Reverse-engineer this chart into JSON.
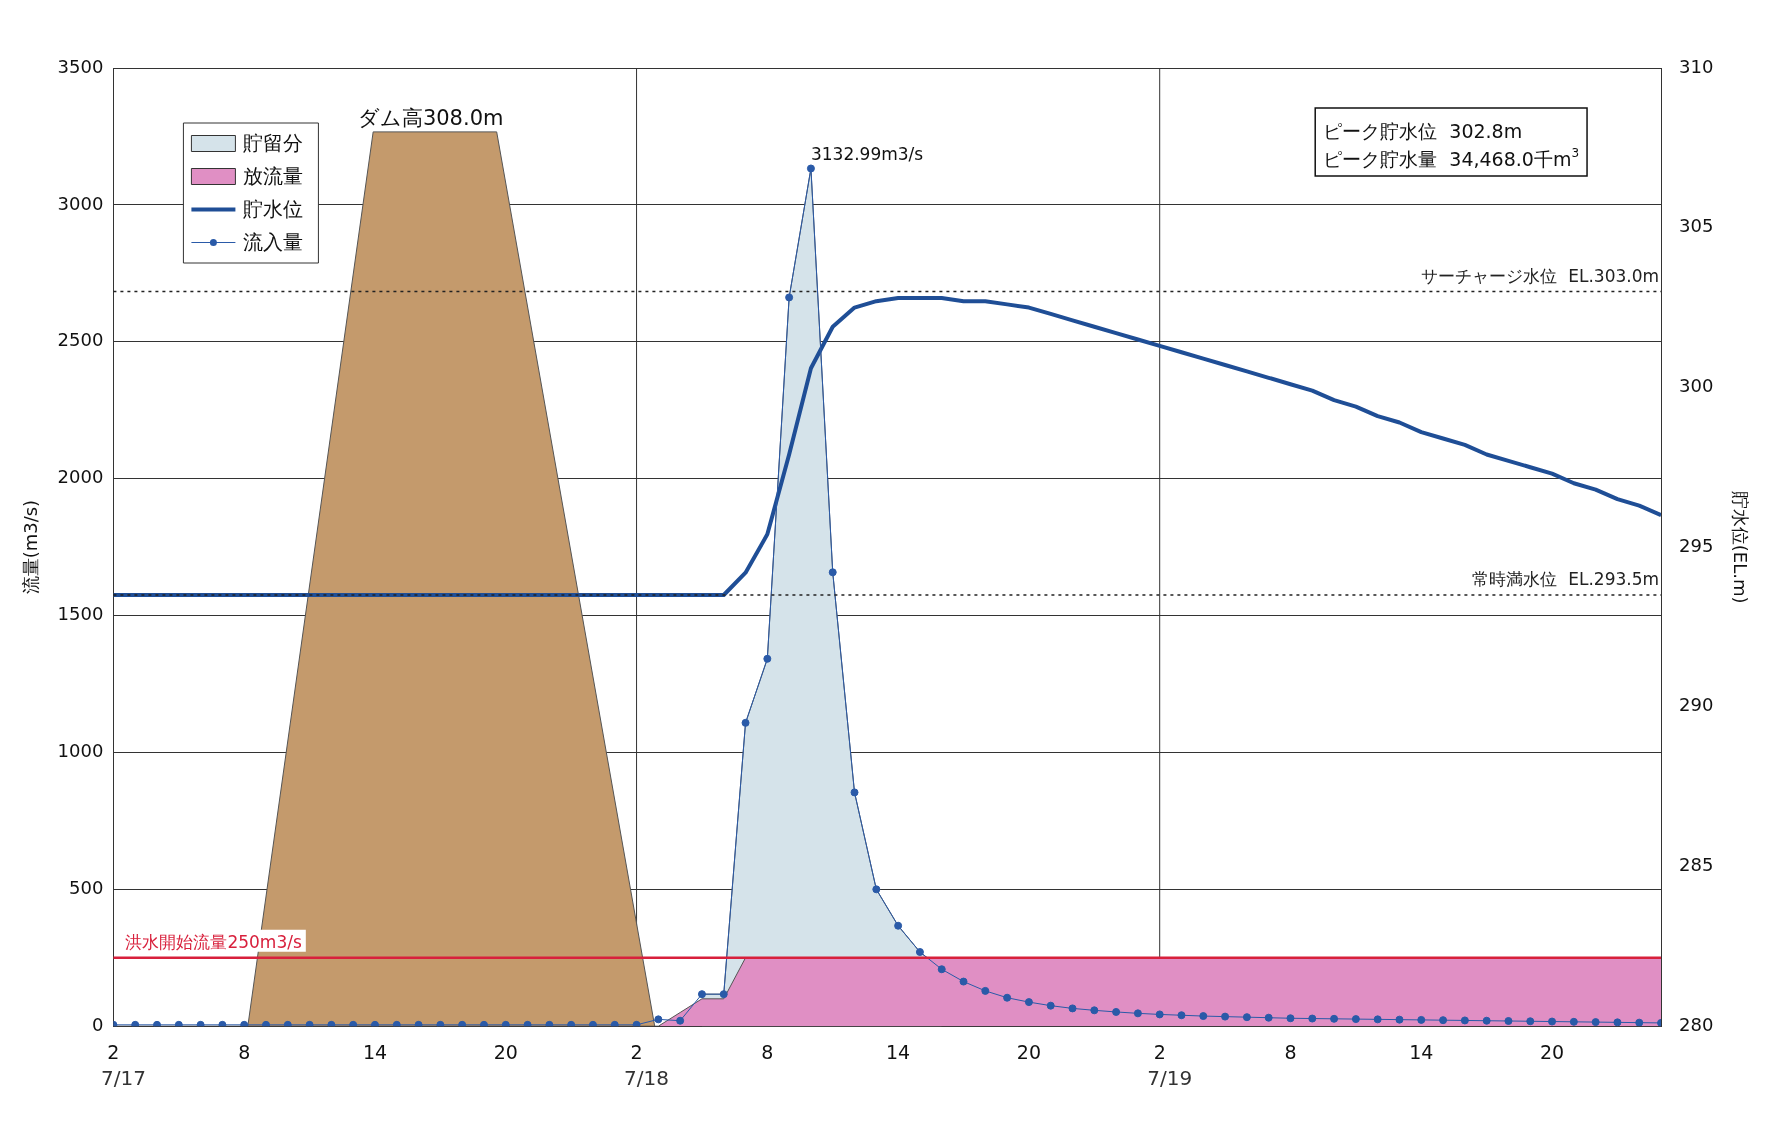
{
  "chart_data": {
    "type": "line",
    "ylabel": "流量(m3/s)",
    "y2label": "貯水位(EL.m)",
    "x": [
      "--07-17T02:00",
      "--07-17T03:00",
      "--07-17T04:00",
      "--07-17T05:00",
      "--07-17T06:00",
      "--07-17T07:00",
      "--07-17T08:00",
      "--07-17T09:00",
      "--07-17T10:00",
      "--07-17T11:00",
      "--07-17T12:00",
      "--07-17T13:00",
      "--07-17T14:00",
      "--07-17T15:00",
      "--07-17T16:00",
      "--07-17T17:00",
      "--07-17T18:00",
      "--07-17T19:00",
      "--07-17T20:00",
      "--07-17T21:00",
      "--07-17T22:00",
      "--07-17T23:00",
      "--07-18T00:00",
      "--07-18T01:00",
      "--07-18T02:00",
      "--07-18T03:00",
      "--07-18T04:00",
      "--07-18T05:00",
      "--07-18T06:00",
      "--07-18T07:00",
      "--07-18T08:00",
      "--07-18T09:00",
      "--07-18T10:00",
      "--07-18T11:00",
      "--07-18T12:00",
      "--07-18T13:00",
      "--07-18T14:00",
      "--07-18T15:00",
      "--07-18T16:00",
      "--07-18T17:00",
      "--07-18T18:00",
      "--07-18T19:00",
      "--07-18T20:00",
      "--07-18T21:00",
      "--07-18T22:00",
      "--07-18T23:00",
      "--07-19T00:00",
      "--07-19T01:00",
      "--07-19T02:00",
      "--07-19T03:00",
      "--07-19T04:00",
      "--07-19T05:00",
      "--07-19T06:00",
      "--07-19T07:00",
      "--07-19T08:00",
      "--07-19T09:00",
      "--07-19T10:00",
      "--07-19T11:00",
      "--07-19T12:00",
      "--07-19T13:00",
      "--07-19T14:00",
      "--07-19T15:00",
      "--07-19T16:00",
      "--07-19T17:00",
      "--07-19T18:00",
      "--07-19T19:00",
      "--07-19T20:00",
      "--07-19T21:00",
      "--07-19T22:00",
      "--07-19T23:00",
      "--07-20T00:00",
      "--07-20T01:00"
    ],
    "xlim": [
      "--07-17T02:00",
      "--07-20T01:00"
    ],
    "xticks": [
      {
        "value": "--07-17T02:00",
        "label": "2"
      },
      {
        "value": "--07-17T08:00",
        "label": "8"
      },
      {
        "value": "--07-17T14:00",
        "label": "14"
      },
      {
        "value": "--07-17T20:00",
        "label": "20"
      },
      {
        "value": "--07-18T02:00",
        "label": "2"
      },
      {
        "value": "--07-18T08:00",
        "label": "8"
      },
      {
        "value": "--07-18T14:00",
        "label": "14"
      },
      {
        "value": "--07-18T20:00",
        "label": "20"
      },
      {
        "value": "--07-19T02:00",
        "label": "2"
      },
      {
        "value": "--07-19T08:00",
        "label": "8"
      },
      {
        "value": "--07-19T14:00",
        "label": "14"
      },
      {
        "value": "--07-19T20:00",
        "label": "20"
      }
    ],
    "ylim": [
      0,
      3500
    ],
    "yticks": [
      0,
      500,
      1000,
      1500,
      2000,
      2500,
      3000,
      3500
    ],
    "y2lim": [
      280,
      310
    ],
    "y2ticks": [
      280,
      285,
      290,
      295,
      300,
      305,
      310
    ],
    "grid": "y",
    "legend": "top left",
    "series": [
      {
        "type": "area",
        "axis": "y2",
        "color": "#c49a6c",
        "x": [
          "--07-17T08:10",
          "--07-17T13:55",
          "--07-17T19:35",
          "--07-18T02:50"
        ],
        "values": [
          280,
          308,
          308,
          280
        ]
      },
      {
        "name": "貯留分",
        "type": "area",
        "color": "#d5e3ea",
        "x": [
          "--07-18T05:00",
          "--07-18T06:00",
          "--07-18T07:00",
          "--07-18T08:00",
          "--07-18T09:00",
          "--07-18T10:00",
          "--07-18T11:00",
          "--07-18T12:00",
          "--07-18T13:00",
          "--07-18T14:00",
          "--07-18T15:00",
          "--07-18T16:00"
        ],
        "values": [
          117,
          117,
          1108,
          1342,
          2662,
          3132.99,
          1658,
          854,
          500,
          367,
          271,
          208
        ]
      },
      {
        "name": "放流量",
        "type": "area",
        "color": "#e08fc4",
        "values": [
          0,
          0,
          0,
          0,
          0,
          0,
          0,
          0,
          0,
          0,
          0,
          0,
          0,
          0,
          0,
          0,
          0,
          0,
          0,
          0,
          0,
          0,
          0,
          0,
          0,
          0,
          50,
          100,
          100,
          250,
          250,
          250,
          250,
          250,
          250,
          250,
          250,
          250,
          250,
          250,
          250,
          250,
          250,
          250,
          250,
          250,
          250,
          250,
          250,
          250,
          250,
          250,
          250,
          250,
          250,
          250,
          250,
          250,
          250,
          250,
          250,
          250,
          250,
          250,
          250,
          250,
          250,
          250,
          250,
          250,
          250,
          250
        ]
      },
      {
        "name": "貯水位",
        "type": "line",
        "axis": "y2",
        "color": "#1f4e96",
        "values": [
          293.5,
          293.5,
          293.5,
          293.5,
          293.5,
          293.5,
          293.5,
          293.5,
          293.5,
          293.5,
          293.5,
          293.5,
          293.5,
          293.5,
          293.5,
          293.5,
          293.5,
          293.5,
          293.5,
          293.5,
          293.5,
          293.5,
          293.5,
          293.5,
          293.5,
          293.5,
          293.5,
          293.5,
          293.5,
          294.2,
          295.4,
          297.9,
          300.6,
          301.9,
          302.5,
          302.7,
          302.8,
          302.8,
          302.8,
          302.7,
          302.7,
          302.6,
          302.5,
          302.3,
          302.1,
          301.9,
          301.7,
          301.5,
          301.3,
          301.1,
          300.9,
          300.7,
          300.5,
          300.3,
          300.1,
          299.9,
          299.6,
          299.4,
          299.1,
          298.9,
          298.6,
          298.4,
          298.2,
          297.9,
          297.7,
          297.5,
          297.3,
          297.0,
          296.8,
          296.5,
          296.3,
          296.0
        ]
      },
      {
        "name": "流入量",
        "type": "line",
        "marker": "circle",
        "color": "#2a5aa8",
        "values": [
          5,
          5,
          5,
          5,
          5,
          5,
          5,
          5,
          5,
          5,
          5,
          5,
          5,
          5,
          5,
          5,
          5,
          5,
          5,
          5,
          5,
          5,
          5,
          5,
          5,
          25,
          20,
          117,
          117,
          1108,
          1342,
          2662,
          3132.99,
          1658,
          854,
          500,
          367,
          271,
          208,
          163,
          129,
          104,
          88,
          75,
          65,
          58,
          52,
          47,
          43,
          40,
          37,
          35,
          33,
          31,
          29,
          28,
          27,
          26,
          25,
          24,
          23,
          22,
          21,
          20,
          19,
          18,
          17,
          16,
          15,
          14,
          13,
          12
        ]
      }
    ],
    "ref_lines": [
      {
        "axis": "y",
        "value": 250,
        "label": "洪水開始流量250m3/s",
        "color": "#d8203c",
        "line_style": "solid"
      },
      {
        "axis": "y2",
        "value": 303.0,
        "label": "サーチャージ水位  EL.303.0m",
        "color": "#222222",
        "line_style": "dotted"
      },
      {
        "axis": "y2",
        "value": 293.5,
        "label": "常時満水位  EL.293.5m",
        "color": "#222222",
        "line_style": "dotted"
      },
      {
        "axis": "x",
        "value": "--07-18T02:00",
        "label": "7/18",
        "color": "#333333",
        "line_style": "solid"
      },
      {
        "axis": "x",
        "value": "--07-19T02:00",
        "label": "7/19",
        "color": "#333333",
        "line_style": "solid"
      }
    ],
    "annotations": [
      "ダム高308.0m",
      "ピーク貯水位  302.8m",
      "ピーク貯水量  34,468.0千m$^{3}$",
      "7/17",
      {
        "text": "3132.99m3/s",
        "x": "--07-18T10:00",
        "y": 3132.99
      }
    ]
  }
}
